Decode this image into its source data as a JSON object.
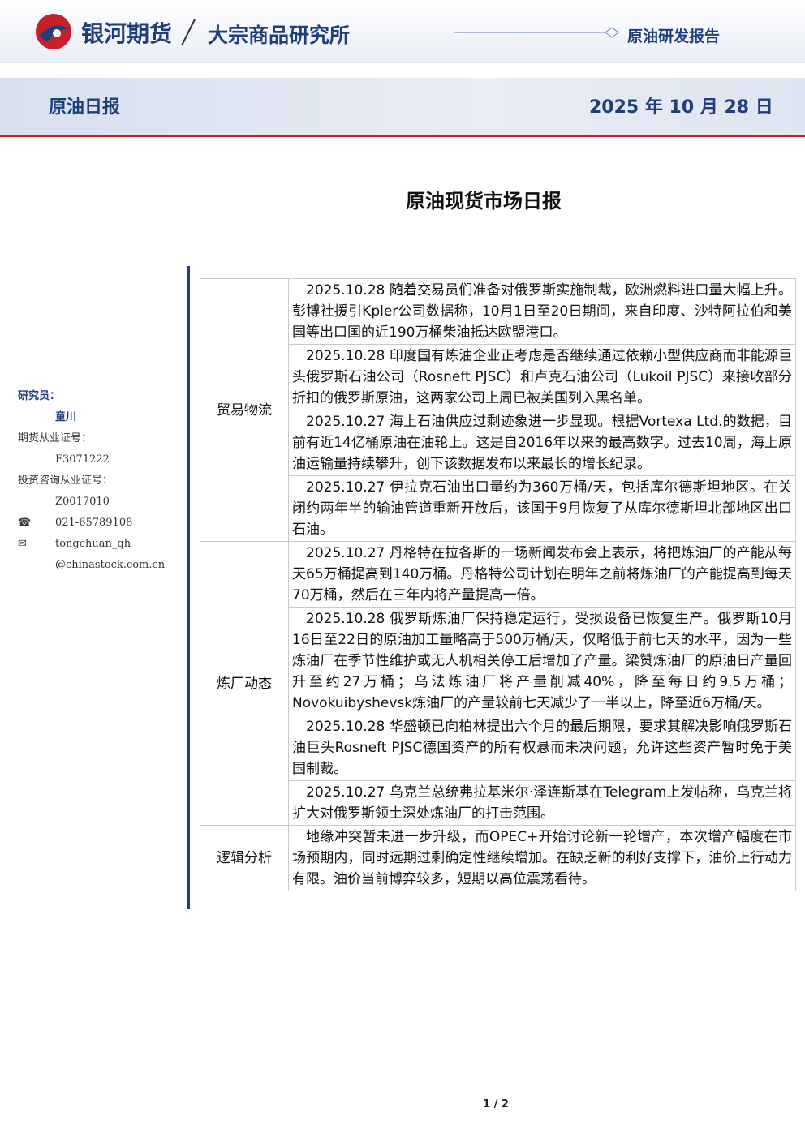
{
  "header": {
    "brand": "银河期货",
    "institute": "大宗商品研究所",
    "report_type": "原油研发报告",
    "report_name": "原油日报",
    "date": "2025 年 10 月 28 日"
  },
  "title": "原油现货市场日报",
  "sidebar": {
    "researcher_label": "研究员：",
    "researcher": "童川",
    "license_label": "期货从业证号：",
    "license": "F3071222",
    "consult_label": "投资咨询从业证号：",
    "consult": "Z0017010",
    "phone": "021-65789108",
    "email_lines": [
      "tongchuan_qh",
      "@chinastock.com.cn"
    ]
  },
  "table": {
    "sections": [
      {
        "label": "贸易物流",
        "items": [
          "2025.10.28 随着交易员们准备对俄罗斯实施制裁，欧洲燃料进口量大幅上升。彭博社援引Kpler公司数据称，10月1日至20日期间，来自印度、沙特阿拉伯和美国等出口国的近190万桶柴油抵达欧盟港口。",
          "2025.10.28 印度国有炼油企业正考虑是否继续通过依赖小型供应商而非能源巨头俄罗斯石油公司（Rosneft PJSC）和卢克石油公司（Lukoil PJSC）来接收部分折扣的俄罗斯原油，这两家公司上周已被美国列入黑名单。",
          "2025.10.27 海上石油供应过剩迹象进一步显现。根据Vortexa Ltd.的数据，目前有近14亿桶原油在油轮上。这是自2016年以来的最高数字。过去10周，海上原油运输量持续攀升，创下该数据发布以来最长的增长纪录。",
          "2025.10.27 伊拉克石油出口量约为360万桶/天，包括库尔德斯坦地区。在关闭约两年半的输油管道重新开放后，该国于9月恢复了从库尔德斯坦北部地区出口石油。"
        ]
      },
      {
        "label": "炼厂动态",
        "items": [
          "2025.10.27 丹格特在拉各斯的一场新闻发布会上表示，将把炼油厂的产能从每天65万桶提高到140万桶。丹格特公司计划在明年之前将炼油厂的产能提高到每天70万桶，然后在三年内将产量提高一倍。",
          "2025.10.28 俄罗斯炼油厂保持稳定运行，受损设备已恢复生产。俄罗斯10月16日至22日的原油加工量略高于500万桶/天，仅略低于前七天的水平，因为一些炼油厂在季节性维护或无人机相关停工后增加了产量。梁赞炼油厂的原油日产量回升至约27万桶；乌法炼油厂将产量削减40%，降至每日约9.5万桶；Novokuibyshevsk炼油厂的产量较前七天减少了一半以上，降至近6万桶/天。",
          "2025.10.28 华盛顿已向柏林提出六个月的最后期限，要求其解决影响俄罗斯石油巨头Rosneft PJSC德国资产的所有权悬而未决问题，允许这些资产暂时免于美国制裁。",
          "2025.10.27 乌克兰总统弗拉基米尔·泽连斯基在Telegram上发帖称，乌克兰将扩大对俄罗斯领土深处炼油厂的打击范围。"
        ]
      },
      {
        "label": "逻辑分析",
        "items": [
          "地缘冲突暂未进一步升级，而OPEC+开始讨论新一轮增产，本次增产幅度在市场预期内，同时远期过剩确定性继续增加。在缺乏新的利好支撑下，油价上行动力有限。油价当前博弈较多，短期以高位震荡看待。"
        ]
      }
    ]
  },
  "footer": {
    "page": "1 / 2"
  }
}
